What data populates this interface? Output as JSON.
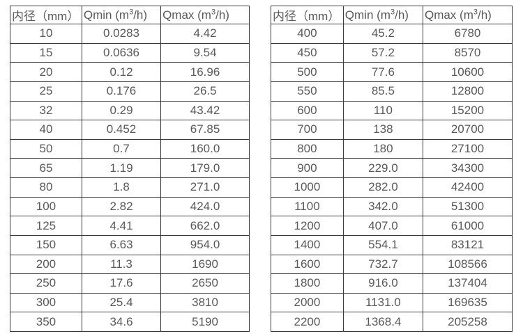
{
  "page": {
    "background": "#ffffff",
    "border_color": "#3a3a3a",
    "text_color": "#595959"
  },
  "tables": [
    {
      "name": "flow-table-left",
      "headers": [
        {
          "name": "header-cell-diameter",
          "pre": "内径（mm）",
          "sup": "",
          "post": ""
        },
        {
          "name": "header-cell-qmin",
          "pre": "Qmin (m",
          "sup": "3",
          "post": "/h)"
        },
        {
          "name": "header-cell-qmax",
          "pre": "Qmax (m",
          "sup": "3",
          "post": "/h)"
        }
      ],
      "cell_names": [
        "cell-diameter",
        "cell-qmin",
        "cell-qmax"
      ],
      "rows": [
        [
          "10",
          "0.0283",
          "4.42"
        ],
        [
          "15",
          "0.0636",
          "9.54"
        ],
        [
          "20",
          "0.12",
          "16.96"
        ],
        [
          "25",
          "0.176",
          "26.5"
        ],
        [
          "32",
          "0.29",
          "43.42"
        ],
        [
          "40",
          "0.452",
          "67.85"
        ],
        [
          "50",
          "0.7",
          "160.0"
        ],
        [
          "65",
          "1.19",
          "179.0"
        ],
        [
          "80",
          "1.8",
          "271.0"
        ],
        [
          "100",
          "2.82",
          "424.0"
        ],
        [
          "125",
          "4.41",
          "662.0"
        ],
        [
          "150",
          "6.63",
          "954.0"
        ],
        [
          "200",
          "11.3",
          "1690"
        ],
        [
          "250",
          "17.6",
          "2650"
        ],
        [
          "300",
          "25.4",
          "3810"
        ],
        [
          "350",
          "34.6",
          "5190"
        ]
      ]
    },
    {
      "name": "flow-table-right",
      "headers": [
        {
          "name": "header-cell-diameter",
          "pre": "内径（mm）",
          "sup": "",
          "post": ""
        },
        {
          "name": "header-cell-qmin",
          "pre": "Qmin (m",
          "sup": "3",
          "post": "/h)"
        },
        {
          "name": "header-cell-qmax",
          "pre": "Qmax (m",
          "sup": "3",
          "post": "/h)"
        }
      ],
      "cell_names": [
        "cell-diameter",
        "cell-qmin",
        "cell-qmax"
      ],
      "rows": [
        [
          "400",
          "45.2",
          "6780"
        ],
        [
          "450",
          "57.2",
          "8570"
        ],
        [
          "500",
          "77.6",
          "10600"
        ],
        [
          "550",
          "85.5",
          "12800"
        ],
        [
          "600",
          "110",
          "15200"
        ],
        [
          "700",
          "138",
          "20700"
        ],
        [
          "800",
          "180",
          "27100"
        ],
        [
          "900",
          "229.0",
          "34300"
        ],
        [
          "1000",
          "282.0",
          "42400"
        ],
        [
          "1100",
          "342.0",
          "51300"
        ],
        [
          "1200",
          "407.0",
          "61000"
        ],
        [
          "1400",
          "554.1",
          "83121"
        ],
        [
          "1600",
          "732.7",
          "108566"
        ],
        [
          "1800",
          "916.0",
          "137404"
        ],
        [
          "2000",
          "1131.0",
          "169635"
        ],
        [
          "2200",
          "1368.4",
          "205258"
        ]
      ]
    }
  ]
}
